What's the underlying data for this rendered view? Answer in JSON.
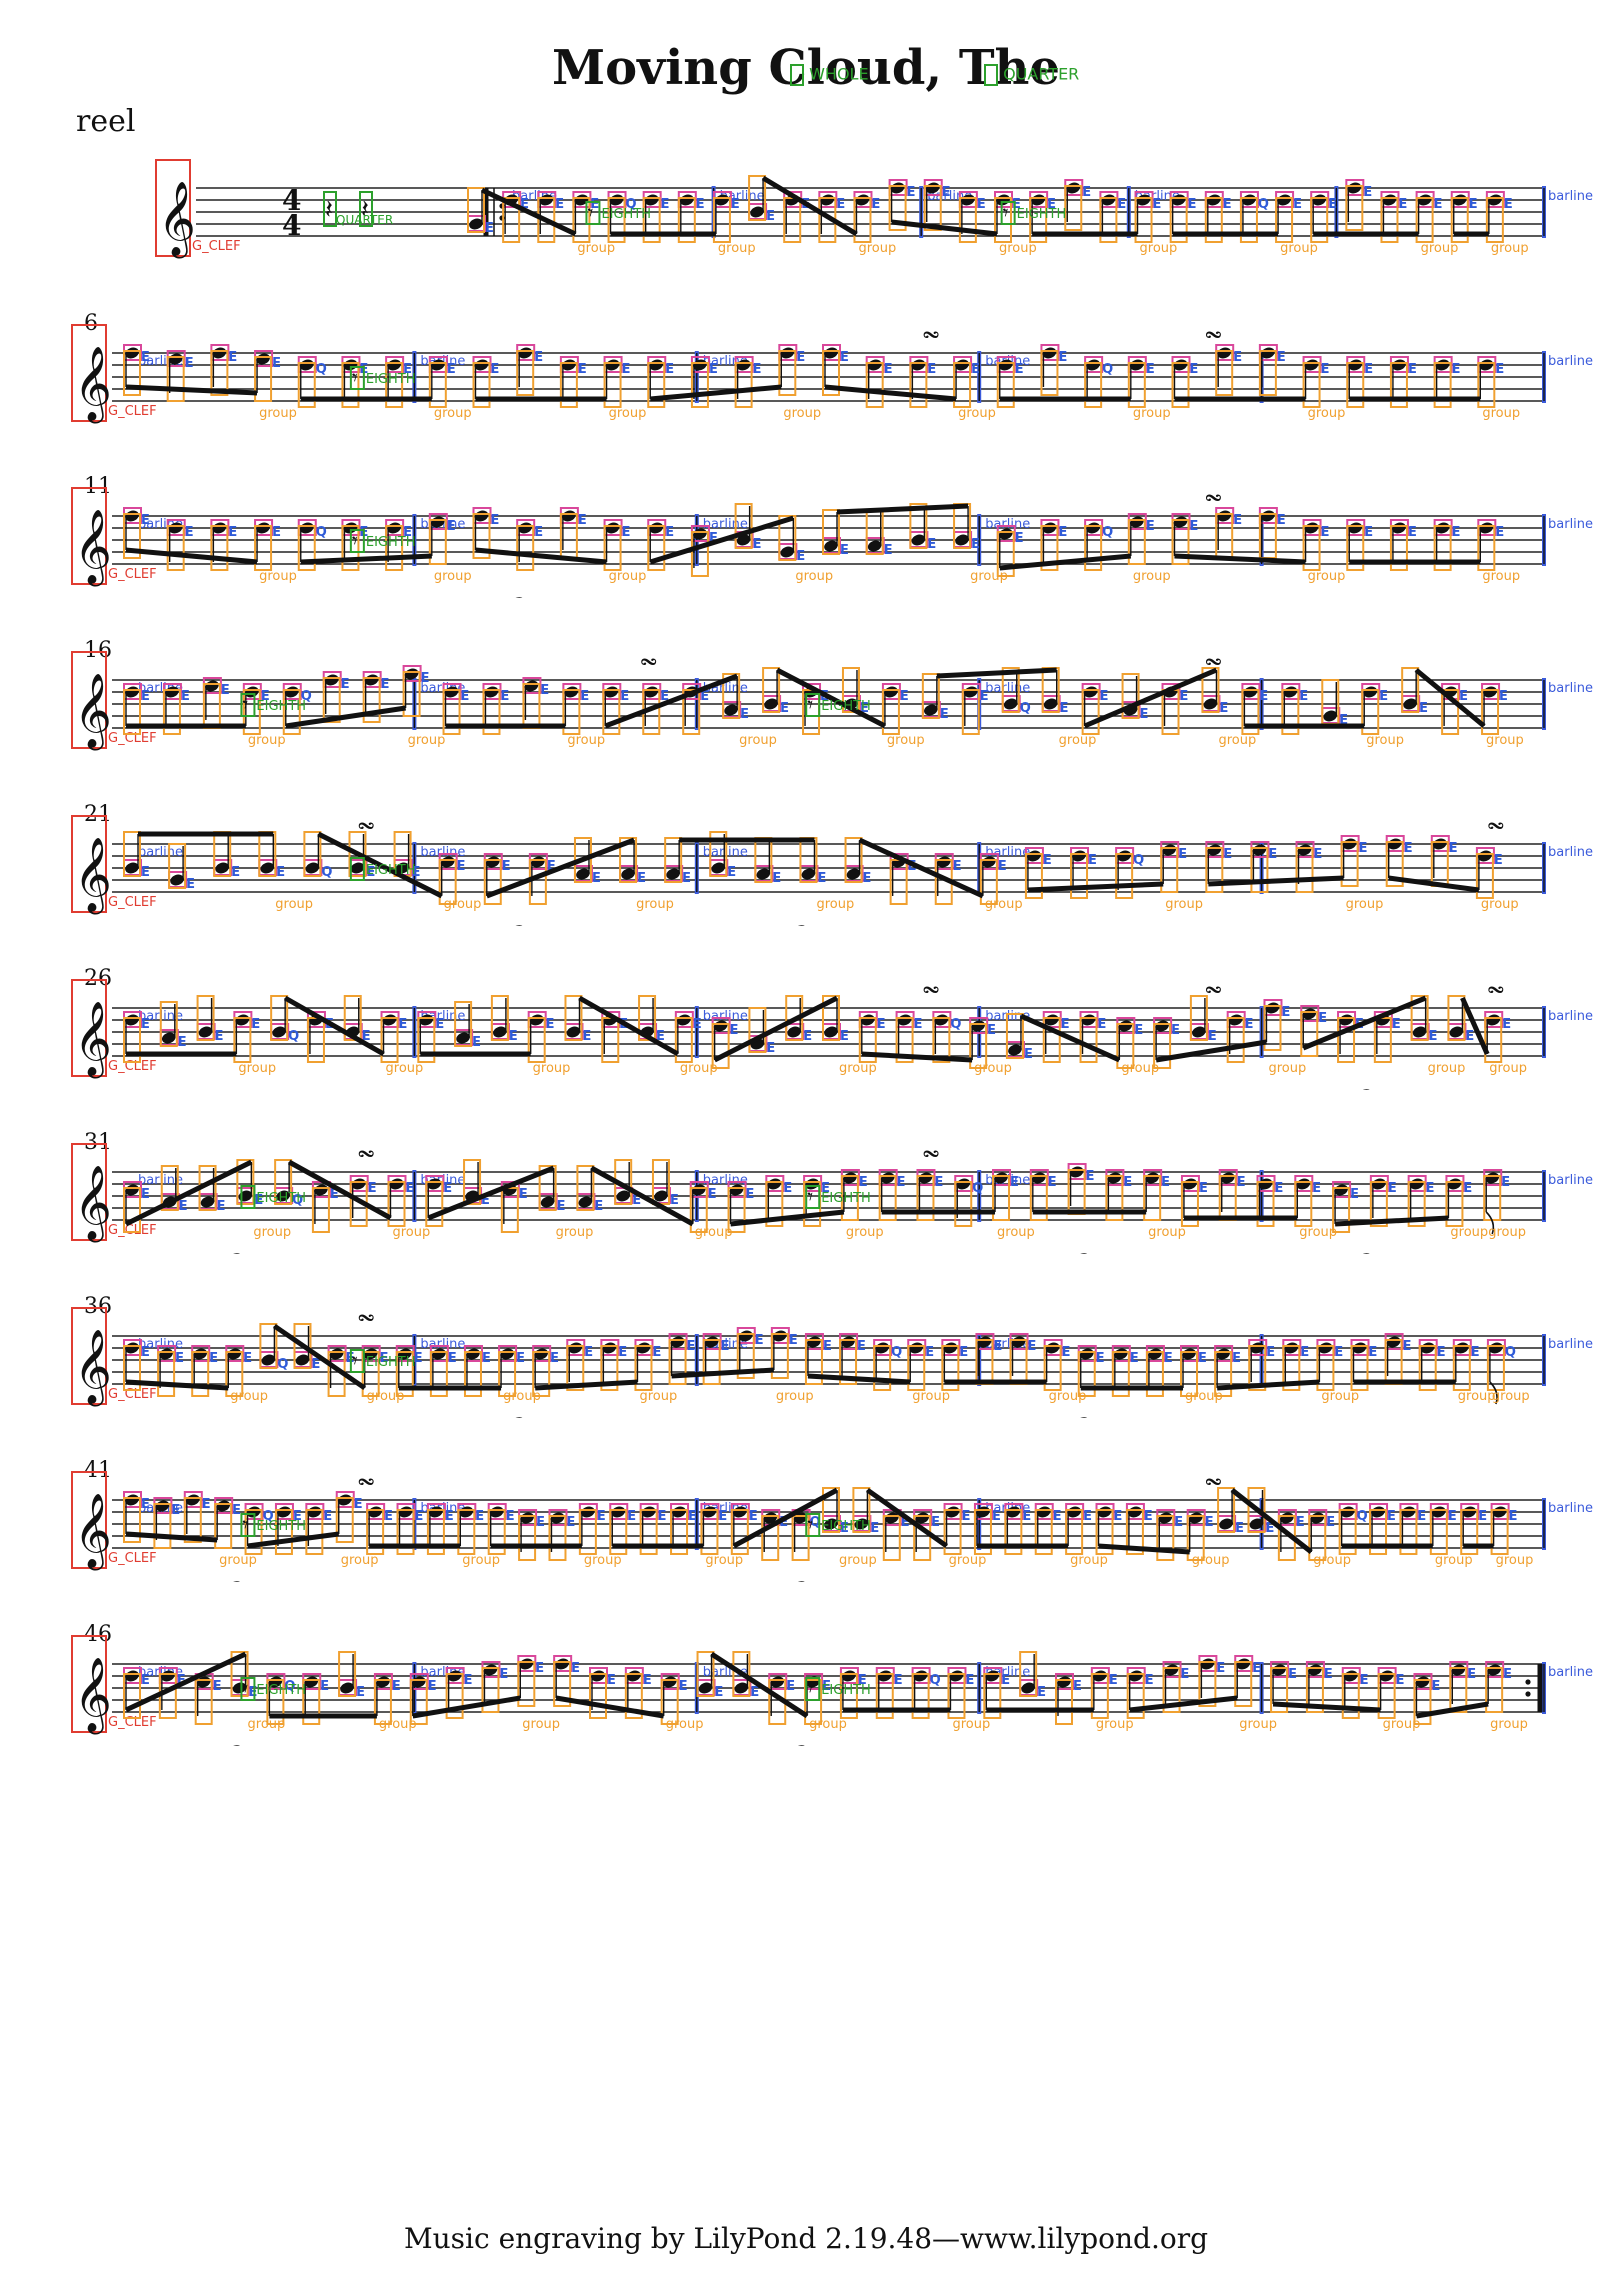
{
  "title": "Moving Cloud, The",
  "subtitle": "reel",
  "footer": "Music engraving by LilyPond 2.19.48—www.lilypond.org",
  "time_signature": {
    "numerator": "4",
    "denominator": "4"
  },
  "title_annotations": [
    "WHOLE",
    "QUARTER"
  ],
  "annotation_labels": {
    "clef": "G_CLEF",
    "barline": "barline",
    "group": "group",
    "eighth_head": "E",
    "quarter_head": "Q",
    "eighth_rest": "EIGHTH",
    "quarter_rest": "QUARTER"
  },
  "annotation_colors": {
    "clef": "#e03c31",
    "barline": "#3b5bdb",
    "group": "#f0a030",
    "notehead": "#d9479b",
    "head_label": "#2f5bd8",
    "rest": "#2ca02c"
  },
  "systems": [
    {
      "number": "",
      "notes": [
        2,
        6,
        6,
        6,
        6,
        6,
        6,
        6,
        4,
        6,
        6,
        6,
        8,
        8,
        6,
        6,
        6,
        8,
        6,
        6,
        6,
        6,
        6,
        6,
        6,
        8,
        6,
        6,
        6,
        6
      ],
      "barlines": 5,
      "rests": 2,
      "triplets": [],
      "turns": []
    },
    {
      "number": "6",
      "notes": [
        8,
        7,
        8,
        7,
        6,
        6,
        6,
        6,
        6,
        8,
        6,
        6,
        6,
        6,
        6,
        8,
        8,
        6,
        6,
        6,
        6,
        8,
        6,
        6,
        6,
        8,
        8,
        6,
        6,
        6,
        6,
        6
      ],
      "barlines": 5,
      "rests": 1,
      "triplets": [],
      "turns": [
        2,
        3
      ]
    },
    {
      "number": "11",
      "notes": [
        8,
        6,
        6,
        6,
        6,
        6,
        6,
        7,
        8,
        6,
        8,
        6,
        6,
        5,
        4,
        2,
        3,
        3,
        4,
        4,
        5,
        6,
        6,
        7,
        7,
        8,
        8,
        6,
        6,
        6,
        6,
        6
      ],
      "barlines": 5,
      "rests": 1,
      "triplets": [
        1
      ],
      "turns": [
        3
      ]
    },
    {
      "number": "16",
      "notes": [
        6,
        6,
        7,
        6,
        6,
        8,
        8,
        9,
        6,
        6,
        7,
        6,
        6,
        6,
        6,
        3,
        4,
        6,
        4,
        6,
        3,
        6,
        4,
        4,
        6,
        3,
        6,
        4,
        6,
        6,
        2,
        6,
        4,
        6,
        6
      ],
      "barlines": 5,
      "rests": 2,
      "triplets": [],
      "turns": [
        1,
        3
      ]
    },
    {
      "number": "21",
      "notes": [
        4,
        2,
        4,
        4,
        4,
        4,
        4,
        5,
        5,
        5,
        3,
        3,
        3,
        4,
        3,
        3,
        3,
        5,
        5,
        5,
        6,
        6,
        6,
        7,
        7,
        7,
        7,
        8,
        8,
        8,
        6
      ],
      "barlines": 5,
      "rests": 1,
      "triplets": [
        1,
        2
      ],
      "turns": [
        0,
        4
      ]
    },
    {
      "number": "26",
      "notes": [
        6,
        3,
        4,
        6,
        4,
        6,
        4,
        6,
        6,
        3,
        4,
        6,
        4,
        6,
        4,
        6,
        5,
        2,
        4,
        4,
        6,
        6,
        6,
        5,
        1,
        6,
        6,
        5,
        5,
        4,
        6,
        8,
        7,
        6,
        6,
        4,
        4,
        6
      ],
      "barlines": 5,
      "rests": 0,
      "triplets": [
        4
      ],
      "turns": [
        2,
        3,
        4
      ]
    },
    {
      "number": "31",
      "notes": [
        5,
        3,
        3,
        4,
        4,
        5,
        6,
        6,
        6,
        4,
        5,
        3,
        3,
        4,
        4,
        5,
        5,
        6,
        6,
        7,
        7,
        7,
        6,
        7,
        7,
        8,
        7,
        7,
        6,
        7,
        6,
        6,
        5,
        6,
        6,
        6,
        7
      ],
      "barlines": 5,
      "rests": 2,
      "triplets": [
        0,
        3,
        4
      ],
      "turns": [
        0,
        2
      ]
    },
    {
      "number": "36",
      "notes": [
        6,
        5,
        5,
        5,
        4,
        4,
        5,
        5,
        5,
        5,
        5,
        5,
        5,
        6,
        6,
        6,
        7,
        7,
        8,
        8,
        7,
        7,
        6,
        6,
        6,
        7,
        7,
        6,
        5,
        5,
        5,
        5,
        5,
        6,
        6,
        6,
        6,
        7,
        6,
        6,
        6
      ],
      "barlines": 5,
      "rests": 1,
      "triplets": [
        1,
        3
      ],
      "turns": [
        0
      ]
    },
    {
      "number": "41",
      "notes": [
        8,
        7,
        8,
        7,
        6,
        6,
        6,
        8,
        6,
        6,
        6,
        6,
        6,
        5,
        5,
        6,
        6,
        6,
        6,
        6,
        6,
        5,
        5,
        4,
        4,
        5,
        5,
        6,
        6,
        6,
        6,
        6,
        6,
        6,
        5,
        5,
        4,
        4,
        5,
        5,
        6,
        6,
        6,
        6,
        6,
        6
      ],
      "barlines": 5,
      "rests": 2,
      "triplets": [
        0,
        2
      ],
      "turns": [
        0,
        3
      ]
    },
    {
      "number": "46",
      "notes": [
        6,
        6,
        5,
        4,
        5,
        5,
        4,
        5,
        5,
        6,
        7,
        8,
        8,
        6,
        6,
        5,
        4,
        4,
        5,
        5,
        6,
        6,
        6,
        6,
        6,
        4,
        5,
        6,
        6,
        7,
        8,
        8,
        7,
        7,
        6,
        6,
        5,
        7,
        7
      ],
      "barlines": 5,
      "rests": 2,
      "triplets": [
        0,
        2
      ],
      "turns": []
    }
  ]
}
